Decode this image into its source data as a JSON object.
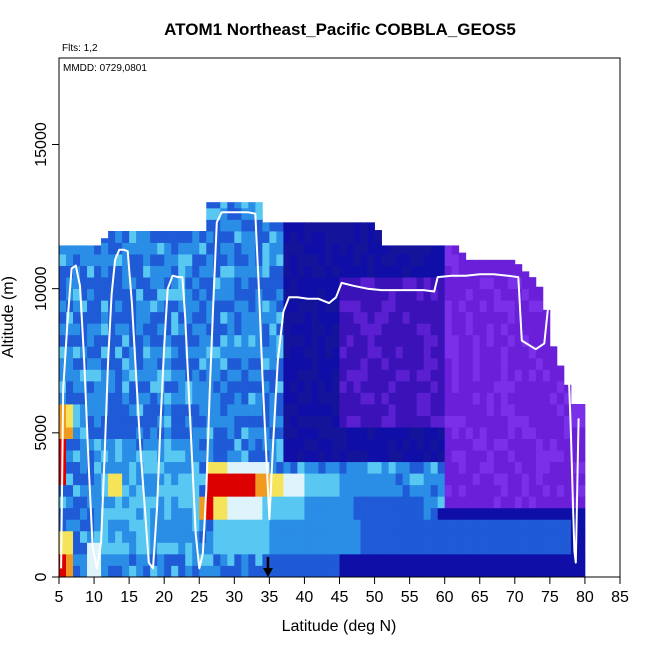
{
  "chart_data": {
    "type": "heatmap",
    "title": "ATOM1 Northeast_Pacific COBBLA_GEOS5",
    "flights_label": "Flts: 1,2",
    "dates_label": "MMDD: 0729,0801",
    "xlabel": "Latitude (deg N)",
    "ylabel": "Altitude (m)",
    "xlim": [
      5,
      85
    ],
    "ylim": [
      0,
      18000
    ],
    "x_ticks": [
      5,
      10,
      15,
      20,
      25,
      30,
      35,
      40,
      45,
      50,
      55,
      60,
      65,
      70,
      75,
      80,
      85
    ],
    "y_ticks": [
      0,
      5000,
      10000,
      15000
    ],
    "grid": false,
    "legend": "none",
    "palette": [
      "#6a1fd8",
      "#0f0fa8",
      "#1f5bd6",
      "#2a8de6",
      "#58c8f2",
      "#dff3fb",
      "#f5e35a",
      "#f09a20",
      "#dd0000"
    ],
    "arrow_marker": {
      "lat": 34.8,
      "alt": 0
    },
    "flight_track": [
      [
        5.3,
        300
      ],
      [
        5.6,
        6500
      ],
      [
        6.2,
        8800
      ],
      [
        6.8,
        10700
      ],
      [
        7.4,
        10800
      ],
      [
        8.0,
        10100
      ],
      [
        8.6,
        7500
      ],
      [
        9.2,
        4000
      ],
      [
        9.8,
        1000
      ],
      [
        10.4,
        300
      ],
      [
        11.0,
        1200
      ],
      [
        11.5,
        4200
      ],
      [
        12.0,
        7500
      ],
      [
        12.5,
        9800
      ],
      [
        13.0,
        11000
      ],
      [
        13.6,
        11350
      ],
      [
        14.2,
        11350
      ],
      [
        14.8,
        11300
      ],
      [
        15.4,
        9500
      ],
      [
        16.0,
        7000
      ],
      [
        16.6,
        4500
      ],
      [
        17.2,
        2500
      ],
      [
        17.8,
        500
      ],
      [
        18.4,
        300
      ],
      [
        19.0,
        2500
      ],
      [
        19.5,
        5500
      ],
      [
        20.0,
        8000
      ],
      [
        20.5,
        10000
      ],
      [
        21.2,
        10450
      ],
      [
        22.0,
        10400
      ],
      [
        22.6,
        10400
      ],
      [
        23.0,
        9000
      ],
      [
        23.5,
        6500
      ],
      [
        24.0,
        4000
      ],
      [
        24.5,
        1500
      ],
      [
        25.0,
        300
      ],
      [
        25.5,
        800
      ],
      [
        26.0,
        3000
      ],
      [
        26.5,
        6500
      ],
      [
        27.0,
        9500
      ],
      [
        27.5,
        12300
      ],
      [
        28.2,
        12650
      ],
      [
        30.0,
        12650
      ],
      [
        32.0,
        12650
      ],
      [
        33.0,
        12600
      ],
      [
        33.5,
        10000
      ],
      [
        34.0,
        7000
      ],
      [
        34.5,
        4500
      ],
      [
        35.0,
        2000
      ],
      [
        35.5,
        4500
      ],
      [
        36.2,
        7500
      ],
      [
        37.0,
        9200
      ],
      [
        37.8,
        9700
      ],
      [
        39.0,
        9700
      ],
      [
        40.5,
        9650
      ],
      [
        42.0,
        9650
      ],
      [
        43.5,
        9500
      ],
      [
        44.5,
        9700
      ],
      [
        45.3,
        10200
      ],
      [
        47.0,
        10100
      ],
      [
        49.0,
        10000
      ],
      [
        51.0,
        9950
      ],
      [
        53.0,
        9950
      ],
      [
        55.0,
        9950
      ],
      [
        57.0,
        9950
      ],
      [
        58.5,
        9900
      ],
      [
        59.0,
        10400
      ],
      [
        61.0,
        10450
      ],
      [
        63.0,
        10450
      ],
      [
        65.0,
        10500
      ],
      [
        67.0,
        10500
      ],
      [
        69.0,
        10450
      ],
      [
        70.5,
        10400
      ],
      [
        71.0,
        8200
      ],
      [
        73.0,
        7900
      ],
      [
        74.2,
        8100
      ],
      [
        74.8,
        9500
      ],
      [
        75.5,
        10000
      ],
      [
        76.5,
        9500
      ],
      [
        77.2,
        8500
      ],
      [
        77.7,
        7000
      ],
      [
        78.0,
        5000
      ],
      [
        78.3,
        2500
      ],
      [
        78.5,
        900
      ],
      [
        78.7,
        500
      ],
      [
        79.1,
        5500
      ]
    ]
  }
}
